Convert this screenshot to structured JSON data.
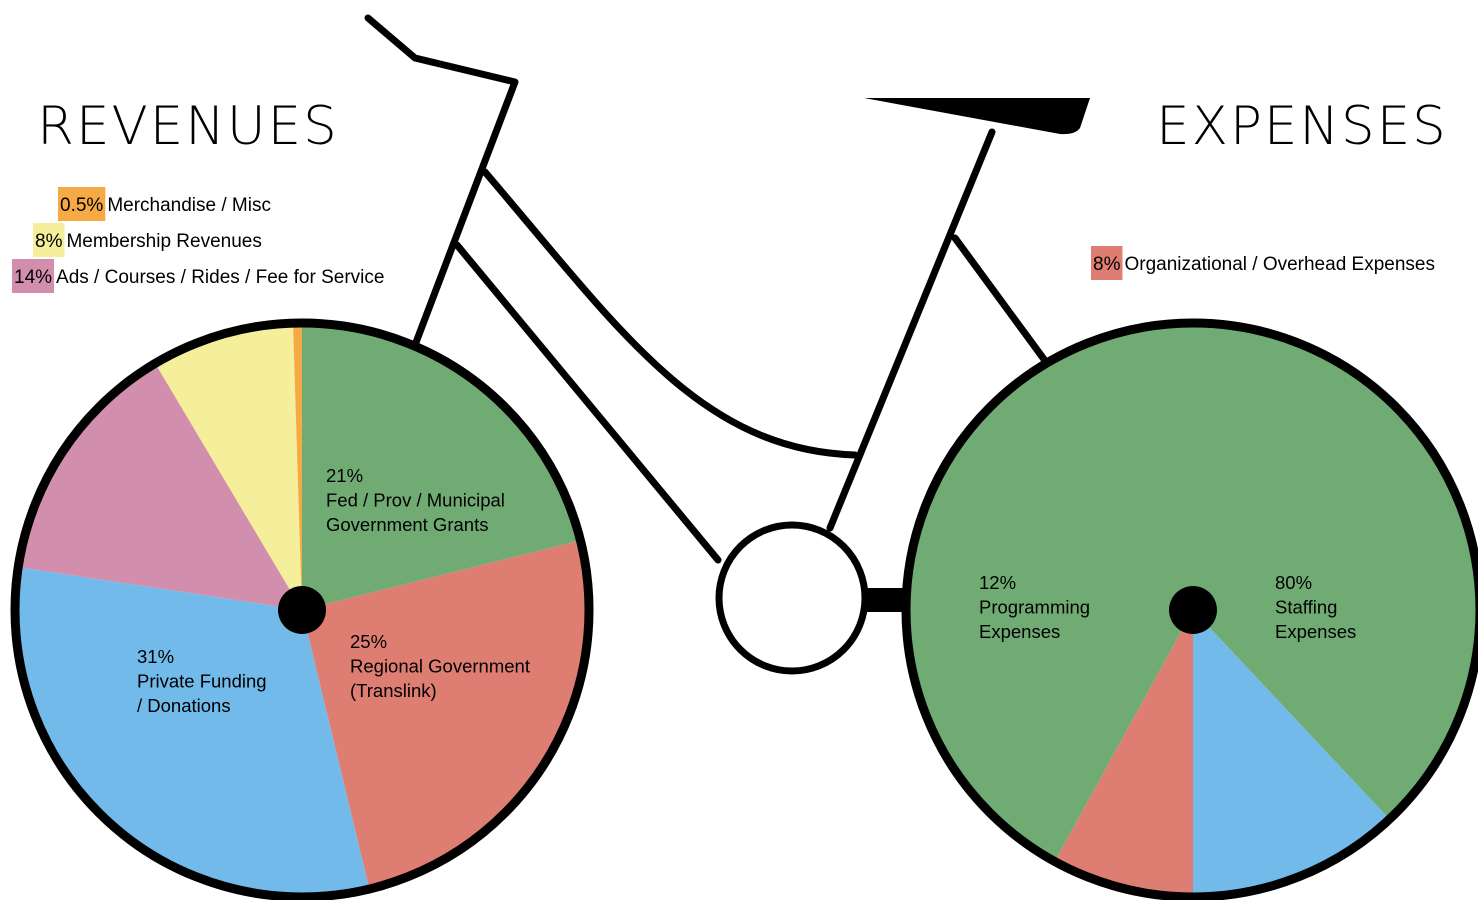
{
  "chart_data": [
    {
      "type": "pie",
      "title": "REVENUES",
      "slices": [
        {
          "pct": 21,
          "value_label": "21%",
          "label_lines": [
            "Fed / Prov / Municipal",
            "Government Grants"
          ],
          "color": "#70ab74"
        },
        {
          "pct": 25,
          "value_label": "25%",
          "label_lines": [
            "Regional Government",
            "(Translink)"
          ],
          "color": "#de7d72"
        },
        {
          "pct": 31,
          "value_label": "31%",
          "label_lines": [
            "Private Funding",
            "/ Donations"
          ],
          "color": "#72baea"
        },
        {
          "pct": 14,
          "value_label": "14%",
          "legend_text": "Ads / Courses / Rides / Fee for Service",
          "color": "#d28fad"
        },
        {
          "pct": 8,
          "value_label": "8%",
          "legend_text": "Membership Revenues",
          "color": "#f5ef9c"
        },
        {
          "pct": 0.5,
          "value_label": "0.5%",
          "legend_text": "Merchandise / Misc",
          "color": "#f6aa45"
        }
      ]
    },
    {
      "type": "pie",
      "title": "EXPENSES",
      "slices": [
        {
          "pct": 80,
          "value_label": "80%",
          "label_lines": [
            "Staffing",
            "Expenses"
          ],
          "color": "#70ab74"
        },
        {
          "pct": 12,
          "value_label": "12%",
          "label_lines": [
            "Programming",
            "Expenses"
          ],
          "color": "#72baea"
        },
        {
          "pct": 8,
          "value_label": "8%",
          "legend_text": "Organizational / Overhead Expenses",
          "color": "#de7d72"
        }
      ]
    }
  ]
}
